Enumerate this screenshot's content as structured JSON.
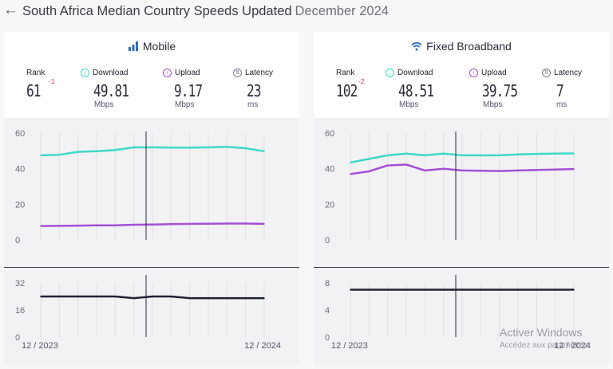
{
  "header": {
    "title": "South Africa Median Country Speeds Updated",
    "date": "December 2024"
  },
  "panels": [
    {
      "title": "Mobile",
      "icon": "signal-bars-icon",
      "rank_label": "Rank",
      "rank": "61",
      "rank_change": "-1",
      "download_label": "Download",
      "download": "49.81",
      "download_unit": "Mbps",
      "upload_label": "Upload",
      "upload": "9.17",
      "upload_unit": "Mbps",
      "latency_label": "Latency",
      "latency": "23",
      "latency_unit": "ms",
      "x_start": "12 / 2023",
      "x_end": "12 / 2024"
    },
    {
      "title": "Fixed Broadband",
      "icon": "wifi-icon",
      "rank_label": "Rank",
      "rank": "102",
      "rank_change": "-2",
      "download_label": "Download",
      "download": "48.51",
      "download_unit": "Mbps",
      "upload_label": "Upload",
      "upload": "39.75",
      "upload_unit": "Mbps",
      "latency_label": "Latency",
      "latency": "7",
      "latency_unit": "ms",
      "x_start": "12 / 2023",
      "x_end": "12 / 2024"
    }
  ],
  "chart_data": [
    {
      "type": "line",
      "title": "Mobile",
      "speed": {
        "ylim": [
          0,
          60
        ],
        "yticks": [
          0,
          20,
          40,
          60
        ],
        "series": [
          {
            "name": "Download",
            "color": "#3fd8c9",
            "values": [
              47.5,
              47.8,
              49.5,
              49.8,
              50.5,
              52.0,
              52.0,
              51.8,
              51.8,
              52.0,
              52.3,
              51.5,
              49.8
            ]
          },
          {
            "name": "Upload",
            "color": "#a44fd6",
            "values": [
              7.8,
              7.9,
              8.0,
              8.2,
              8.2,
              8.5,
              8.6,
              8.8,
              9.0,
              9.1,
              9.2,
              9.2,
              9.0
            ]
          }
        ]
      },
      "latency": {
        "ylim": [
          0,
          32
        ],
        "yticks": [
          0,
          16,
          32
        ],
        "series": [
          {
            "name": "Latency",
            "color": "#1f2233",
            "values": [
              24,
              24,
              24,
              24,
              24,
              23,
              24,
              24,
              23,
              23,
              23,
              23,
              23
            ]
          }
        ]
      },
      "cursor_index": 6
    },
    {
      "type": "line",
      "title": "Fixed Broadband",
      "speed": {
        "ylim": [
          0,
          60
        ],
        "yticks": [
          0,
          20,
          40,
          60
        ],
        "series": [
          {
            "name": "Download",
            "color": "#3fd8c9",
            "values": [
              43.5,
              45.5,
              47.5,
              48.5,
              47.5,
              48.5,
              47.5,
              47.5,
              47.5,
              48.0,
              48.3,
              48.5,
              48.6
            ]
          },
          {
            "name": "Upload",
            "color": "#a44fd6",
            "values": [
              37.0,
              38.5,
              41.8,
              42.3,
              39.0,
              40.0,
              39.0,
              38.8,
              38.7,
              39.0,
              39.3,
              39.5,
              39.8
            ]
          }
        ]
      },
      "latency": {
        "ylim": [
          0,
          8
        ],
        "yticks": [
          0,
          4,
          8
        ],
        "series": [
          {
            "name": "Latency",
            "color": "#1f2233",
            "values": [
              7,
              7,
              7,
              7,
              7,
              7,
              7,
              7,
              7,
              7,
              7,
              7,
              7
            ]
          }
        ]
      },
      "cursor_index": 6
    }
  ],
  "watermark": {
    "line1": "Activer Windows",
    "line2": "Accédez aux paramètres"
  }
}
